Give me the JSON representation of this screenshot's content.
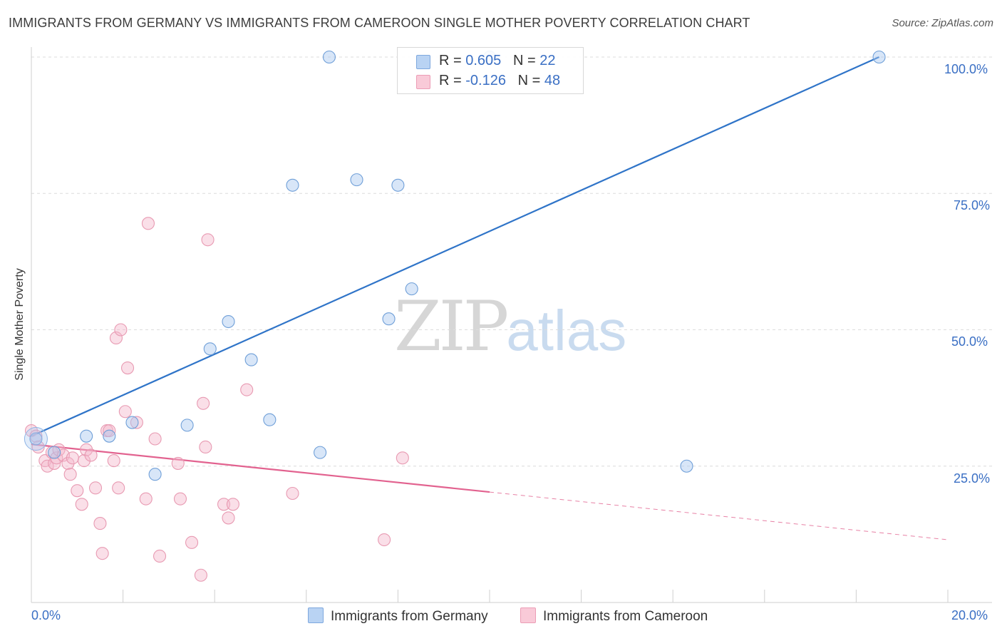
{
  "header": {
    "title": "IMMIGRANTS FROM GERMANY VS IMMIGRANTS FROM CAMEROON SINGLE MOTHER POVERTY CORRELATION CHART",
    "source": "Source: ZipAtlas.com"
  },
  "watermark": {
    "zip": "ZIP",
    "atlas": "atlas"
  },
  "legend": {
    "germany": {
      "r_label": "R =",
      "r_value": "0.605",
      "n_label": "N =",
      "n_value": "22",
      "color": "#a8c8f0"
    },
    "cameroon": {
      "r_label": "R =",
      "r_value": "-0.126",
      "n_label": "N =",
      "n_value": "48",
      "color": "#f5b8cb"
    }
  },
  "axes": {
    "ylabel": "Single Mother Poverty",
    "x_ticks": [
      "0.0%",
      "20.0%"
    ],
    "y_ticks": [
      "100.0%",
      "75.0%",
      "50.0%",
      "25.0%"
    ]
  },
  "bottom_legend": {
    "germany": "Immigrants from Germany",
    "cameroon": "Immigrants from Cameroon"
  },
  "chart_data": {
    "type": "scatter",
    "xlim": [
      0,
      20
    ],
    "ylim": [
      0,
      100
    ],
    "y_gridlines": [
      25,
      50,
      75,
      100
    ],
    "grid": true,
    "series": [
      {
        "name": "Immigrants from Germany",
        "color": "#a8c8f0",
        "stroke": "#6f9fd8",
        "trend_color": "#2f74c8",
        "trend": {
          "x0": 0,
          "y0": 30.5,
          "x1": 18.5,
          "y1": 100.0,
          "dashed_from": null
        },
        "points": [
          [
            0.1,
            30.0
          ],
          [
            0.5,
            27.5
          ],
          [
            1.2,
            30.5
          ],
          [
            1.7,
            30.5
          ],
          [
            2.2,
            33.0
          ],
          [
            2.7,
            23.5
          ],
          [
            3.4,
            32.5
          ],
          [
            3.9,
            46.5
          ],
          [
            4.3,
            51.5
          ],
          [
            4.8,
            44.5
          ],
          [
            5.2,
            33.5
          ],
          [
            5.7,
            76.5
          ],
          [
            6.3,
            27.5
          ],
          [
            6.5,
            100.0
          ],
          [
            7.1,
            77.5
          ],
          [
            7.8,
            52.0
          ],
          [
            8.0,
            76.5
          ],
          [
            8.3,
            57.5
          ],
          [
            10.0,
            100.0
          ],
          [
            10.0,
            100.0
          ],
          [
            14.3,
            25.0
          ],
          [
            18.5,
            100.0
          ]
        ]
      },
      {
        "name": "Immigrants from Cameroon",
        "color": "#f5b8cb",
        "stroke": "#e89ab2",
        "trend_color": "#e2628f",
        "trend": {
          "x0": 0,
          "y0": 29.0,
          "x1": 20.0,
          "y1": 11.5,
          "dashed_from": 10.0
        },
        "points": [
          [
            0.0,
            31.5
          ],
          [
            0.1,
            30.5
          ],
          [
            0.15,
            28.5
          ],
          [
            0.3,
            26.0
          ],
          [
            0.35,
            25.0
          ],
          [
            0.45,
            27.5
          ],
          [
            0.5,
            25.5
          ],
          [
            0.55,
            26.5
          ],
          [
            0.6,
            28.0
          ],
          [
            0.7,
            27.0
          ],
          [
            0.8,
            25.5
          ],
          [
            0.85,
            23.5
          ],
          [
            0.9,
            26.5
          ],
          [
            1.0,
            20.5
          ],
          [
            1.1,
            18.0
          ],
          [
            1.15,
            26.0
          ],
          [
            1.2,
            28.0
          ],
          [
            1.3,
            27.0
          ],
          [
            1.4,
            21.0
          ],
          [
            1.5,
            14.5
          ],
          [
            1.55,
            9.0
          ],
          [
            1.65,
            31.5
          ],
          [
            1.7,
            31.5
          ],
          [
            1.8,
            26.0
          ],
          [
            1.85,
            48.5
          ],
          [
            1.9,
            21.0
          ],
          [
            1.95,
            50.0
          ],
          [
            2.05,
            35.0
          ],
          [
            2.1,
            43.0
          ],
          [
            2.3,
            33.0
          ],
          [
            2.5,
            19.0
          ],
          [
            2.55,
            69.5
          ],
          [
            2.7,
            30.0
          ],
          [
            2.8,
            8.5
          ],
          [
            3.2,
            25.5
          ],
          [
            3.25,
            19.0
          ],
          [
            3.5,
            11.0
          ],
          [
            3.7,
            5.0
          ],
          [
            3.75,
            36.5
          ],
          [
            3.8,
            28.5
          ],
          [
            3.85,
            66.5
          ],
          [
            4.2,
            18.0
          ],
          [
            4.3,
            15.5
          ],
          [
            4.4,
            18.0
          ],
          [
            4.7,
            39.0
          ],
          [
            5.7,
            20.0
          ],
          [
            7.7,
            11.5
          ],
          [
            8.1,
            26.5
          ]
        ]
      }
    ]
  }
}
